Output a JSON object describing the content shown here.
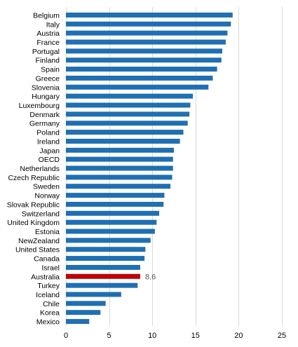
{
  "chart_data": {
    "type": "bar",
    "orientation": "horizontal",
    "categories": [
      "Belgium",
      "Italy",
      "Austria",
      "France",
      "Portugal",
      "Finland",
      "Spain",
      "Greece",
      "Slovenia",
      "Hungary",
      "Luxembourg",
      "Denmark",
      "Germany",
      "Poland",
      "Ireland",
      "Japan",
      "OECD",
      "Netherlands",
      "Czech Republic",
      "Sweden",
      "Norway",
      "Slovak Republic",
      "Switzerland",
      "United Kingdom",
      "Estonia",
      "NewZealand",
      "United States",
      "Canada",
      "Israel",
      "Australia",
      "Turkey",
      "Iceland",
      "Chile",
      "Korea",
      "Mexico"
    ],
    "values": [
      19.3,
      19.1,
      18.7,
      18.5,
      18.1,
      18.0,
      17.5,
      17.0,
      16.5,
      14.7,
      14.4,
      14.3,
      14.1,
      13.6,
      13.2,
      12.5,
      12.4,
      12.4,
      12.3,
      12.1,
      11.4,
      11.3,
      10.8,
      10.5,
      10.3,
      9.8,
      9.2,
      9.1,
      8.6,
      8.6,
      8.3,
      6.4,
      4.6,
      4.0,
      2.7
    ],
    "highlight": {
      "category": "Australia",
      "value_label": "8.6",
      "color": "#c00000"
    },
    "bar_color": "#1f6fb2",
    "x_ticks": [
      "0",
      "5",
      "10",
      "15",
      "20",
      "25"
    ],
    "xlim": [
      0,
      25
    ],
    "grid": "vertical",
    "legend": "none"
  }
}
